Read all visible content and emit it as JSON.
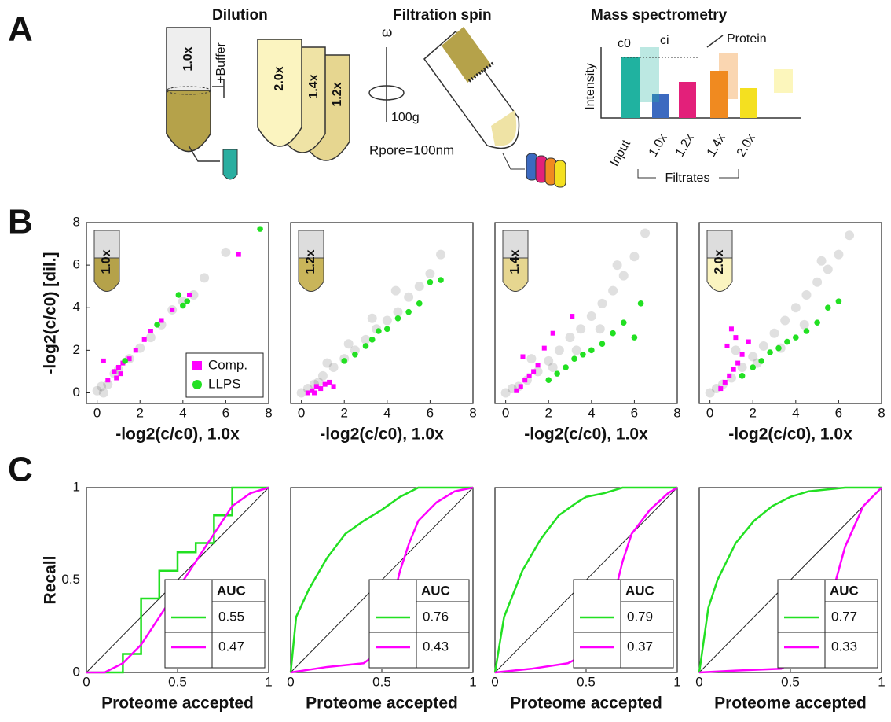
{
  "panel_labels": [
    "A",
    "B",
    "C"
  ],
  "diagram": {
    "dilution": {
      "title": "Dilution",
      "tube": "1.0x",
      "buffer": "+Buffer",
      "tubes": [
        "2.0x",
        "1.4x",
        "1.2x"
      ]
    },
    "filtration": {
      "title": "Filtration spin",
      "omega": "ω",
      "speed": "100g",
      "pore": "Rpore=100nm"
    },
    "mass_spec": {
      "title": "Mass spectrometry",
      "c0": "c0",
      "ci": "ci",
      "protein": "Protein",
      "intensity": "Intensity",
      "input": "Input",
      "samples": [
        "1.0x",
        "1.2x",
        "1.4x",
        "2.0x"
      ],
      "filtrates": "Filtrates"
    }
  },
  "chart_data": [
    {
      "type": "scatter",
      "ylabel": "-log2(c/c0) [dil.]",
      "xlabel": "-log2(c/c0), 1.0x",
      "inset_label": "1.0x",
      "xlim": [
        -0.5,
        8
      ],
      "ylim": [
        -0.5,
        8
      ],
      "xticks": [
        0,
        2,
        4,
        6,
        8
      ],
      "yticks": [
        0,
        2,
        4,
        6,
        8
      ],
      "legend": "lower right",
      "series": [
        {
          "color": "#000000",
          "marker": "circle",
          "x": [
            0,
            0.2,
            0.5,
            1,
            1.5,
            2,
            3,
            4,
            5,
            6,
            0.3,
            0.8,
            2.5,
            4.5,
            3.5
          ],
          "values": [
            0.1,
            0.3,
            0.4,
            1.1,
            1.6,
            2.1,
            3.2,
            4.3,
            5.4,
            6.6,
            0,
            0.9,
            2.6,
            4.6,
            3.9
          ]
        },
        {
          "name": "Comp.",
          "color": "#ff00ff",
          "marker": "square",
          "x": [
            0.5,
            0.8,
            1,
            1.2,
            1.5,
            1.8,
            2.2,
            2.5,
            3,
            3.5,
            4.3,
            6.6,
            0.9,
            1.1,
            0.3
          ],
          "values": [
            0.6,
            1,
            1.2,
            1.4,
            1.6,
            2,
            2.5,
            2.9,
            3.4,
            3.9,
            4.6,
            6.5,
            0.7,
            0.9,
            1.5
          ]
        },
        {
          "name": "LLPS",
          "color": "#22e022",
          "marker": "circle",
          "x": [
            1.3,
            2.8,
            3.8,
            4,
            4.2,
            7.6
          ],
          "values": [
            1.5,
            3.2,
            4.6,
            4.1,
            4.3,
            7.7
          ]
        }
      ]
    },
    {
      "type": "scatter",
      "xlabel": "-log2(c/c0), 1.0x",
      "inset_label": "1.2x",
      "xlim": [
        -0.5,
        8
      ],
      "ylim": [
        -0.5,
        8
      ],
      "xticks": [
        0,
        2,
        4,
        6,
        8
      ],
      "series": [
        {
          "color": "#000000",
          "marker": "circle",
          "x": [
            0,
            0.3,
            0.6,
            1,
            1.5,
            2,
            2.5,
            3,
            3.5,
            4,
            4.5,
            5,
            5.5,
            6,
            6.5,
            1.2,
            2.2,
            3.3,
            4.4,
            0.8
          ],
          "values": [
            0,
            0.2,
            0.4,
            0.8,
            1.2,
            1.6,
            2,
            2.5,
            3,
            3.4,
            3.8,
            4.5,
            5,
            5.6,
            6.5,
            1.4,
            2.3,
            3.5,
            4.8,
            0.5
          ]
        },
        {
          "name": "Comp.",
          "color": "#ff00ff",
          "marker": "square",
          "x": [
            0.3,
            0.5,
            0.7,
            0.9,
            1.1,
            1.3,
            1.5,
            0.6
          ],
          "values": [
            0,
            0.1,
            0.3,
            0.2,
            0.4,
            0.5,
            0.3,
            0
          ]
        },
        {
          "name": "LLPS",
          "color": "#22e022",
          "marker": "circle",
          "x": [
            2,
            2.5,
            3,
            3.3,
            3.6,
            4,
            4.5,
            5,
            5.5,
            6,
            6.5
          ],
          "values": [
            1.5,
            1.8,
            2.2,
            2.5,
            2.9,
            3,
            3.5,
            3.8,
            4.2,
            5.2,
            5.3
          ]
        }
      ]
    },
    {
      "type": "scatter",
      "xlabel": "-log2(c/c0), 1.0x",
      "inset_label": "1.4x",
      "xlim": [
        -0.5,
        8
      ],
      "ylim": [
        -0.5,
        8
      ],
      "xticks": [
        0,
        2,
        4,
        6,
        8
      ],
      "series": [
        {
          "color": "#000000",
          "marker": "circle",
          "x": [
            0,
            0.3,
            0.6,
            1,
            1.5,
            2,
            2.5,
            3,
            3.5,
            4,
            4.5,
            5,
            5.5,
            6,
            6.5,
            1.2,
            2.2,
            3.3,
            4.4,
            5.2
          ],
          "values": [
            0,
            0.2,
            0.3,
            0.6,
            1,
            1.5,
            2,
            2.6,
            3,
            3.6,
            4.2,
            4.8,
            5.5,
            6.4,
            7.5,
            1.6,
            1.2,
            2,
            3,
            6
          ]
        },
        {
          "name": "Comp.",
          "color": "#ff00ff",
          "marker": "square",
          "x": [
            0.5,
            0.7,
            0.9,
            1.1,
            1.3,
            1.5,
            0.8,
            1.8,
            3.1,
            2.2
          ],
          "values": [
            0.1,
            0.3,
            0.6,
            0.8,
            1,
            1.3,
            1.7,
            2.1,
            3.6,
            2.8
          ]
        },
        {
          "name": "LLPS",
          "color": "#22e022",
          "marker": "circle",
          "x": [
            2,
            2.4,
            2.8,
            3.2,
            3.6,
            4,
            4.5,
            5,
            5.5,
            6,
            6.3
          ],
          "values": [
            0.6,
            0.9,
            1.2,
            1.6,
            1.8,
            2,
            2.3,
            2.8,
            3.3,
            2.6,
            4.2
          ]
        }
      ]
    },
    {
      "type": "scatter",
      "xlabel": "-log2(c/c0), 1.0x",
      "inset_label": "2.0x",
      "xlim": [
        -0.5,
        8
      ],
      "ylim": [
        -0.5,
        8
      ],
      "xticks": [
        0,
        2,
        4,
        6,
        8
      ],
      "series": [
        {
          "color": "#000000",
          "marker": "circle",
          "x": [
            0,
            0.3,
            0.6,
            1,
            1.5,
            2,
            2.5,
            3,
            3.5,
            4,
            4.5,
            5,
            5.5,
            6,
            6.5,
            1.2,
            2.2,
            3.3,
            4.4,
            5.2
          ],
          "values": [
            0,
            0.2,
            0.4,
            0.7,
            1.2,
            1.7,
            2.2,
            2.8,
            3.4,
            4,
            4.6,
            5.2,
            5.8,
            6.5,
            7.4,
            2,
            1.4,
            2.1,
            3.2,
            6.2
          ]
        },
        {
          "name": "Comp.",
          "color": "#ff00ff",
          "marker": "square",
          "x": [
            0.5,
            0.7,
            0.9,
            1.1,
            1.3,
            1.5,
            0.8,
            1.8,
            1,
            1.2
          ],
          "values": [
            0.2,
            0.5,
            0.8,
            1.1,
            1.4,
            1.8,
            2.2,
            2.4,
            3,
            2.6
          ]
        },
        {
          "name": "LLPS",
          "color": "#22e022",
          "marker": "circle",
          "x": [
            1.5,
            2,
            2.4,
            2.8,
            3.2,
            3.6,
            4,
            4.5,
            5,
            5.5,
            6
          ],
          "values": [
            0.8,
            1.2,
            1.5,
            1.9,
            2.1,
            2.4,
            2.6,
            2.9,
            3.3,
            4,
            4.3
          ]
        }
      ]
    },
    {
      "type": "line",
      "ylabel": "Recall",
      "xlabel": "Proteome accepted",
      "xlim": [
        0,
        1
      ],
      "ylim": [
        0,
        1
      ],
      "xticks": [
        0,
        0.5,
        1
      ],
      "yticks": [
        0,
        0.5,
        1
      ],
      "legend": "lower right",
      "legend_title": "AUC",
      "series": [
        {
          "color": "#22e022",
          "auc": "0.55",
          "x": [
            0,
            0.2,
            0.2,
            0.3,
            0.3,
            0.4,
            0.4,
            0.5,
            0.5,
            0.6,
            0.6,
            0.7,
            0.7,
            0.8,
            0.8,
            1
          ],
          "values": [
            0,
            0,
            0.1,
            0.1,
            0.4,
            0.4,
            0.55,
            0.55,
            0.65,
            0.65,
            0.7,
            0.7,
            0.85,
            0.85,
            1,
            1
          ]
        },
        {
          "color": "#ff00ff",
          "auc": "0.47",
          "x": [
            0,
            0.1,
            0.2,
            0.3,
            0.4,
            0.5,
            0.6,
            0.7,
            0.8,
            0.9,
            1
          ],
          "values": [
            0,
            0,
            0.05,
            0.15,
            0.3,
            0.45,
            0.6,
            0.75,
            0.9,
            0.97,
            1
          ]
        }
      ]
    },
    {
      "type": "line",
      "xlabel": "Proteome accepted",
      "xlim": [
        0,
        1
      ],
      "ylim": [
        0,
        1
      ],
      "xticks": [
        0,
        0.5,
        1
      ],
      "legend": "lower right",
      "legend_title": "AUC",
      "series": [
        {
          "color": "#22e022",
          "auc": "0.76",
          "x": [
            0,
            0.03,
            0.1,
            0.2,
            0.3,
            0.4,
            0.5,
            0.6,
            0.7,
            0.8,
            1
          ],
          "values": [
            0,
            0.3,
            0.45,
            0.62,
            0.75,
            0.82,
            0.88,
            0.95,
            1,
            1,
            1
          ]
        },
        {
          "color": "#ff00ff",
          "auc": "0.43",
          "x": [
            0,
            0.2,
            0.4,
            0.5,
            0.55,
            0.6,
            0.65,
            0.7,
            0.8,
            0.9,
            1
          ],
          "values": [
            0,
            0.03,
            0.05,
            0.12,
            0.35,
            0.55,
            0.7,
            0.82,
            0.92,
            0.98,
            1
          ]
        }
      ]
    },
    {
      "type": "line",
      "xlabel": "Proteome accepted",
      "xlim": [
        0,
        1
      ],
      "ylim": [
        0,
        1
      ],
      "xticks": [
        0,
        0.5,
        1
      ],
      "legend": "lower right",
      "legend_title": "AUC",
      "series": [
        {
          "color": "#22e022",
          "auc": "0.79",
          "x": [
            0,
            0.05,
            0.15,
            0.25,
            0.35,
            0.45,
            0.5,
            0.6,
            0.7,
            1
          ],
          "values": [
            0,
            0.3,
            0.55,
            0.72,
            0.85,
            0.92,
            0.95,
            0.97,
            1,
            1
          ]
        },
        {
          "color": "#ff00ff",
          "auc": "0.37",
          "x": [
            0,
            0.2,
            0.4,
            0.5,
            0.6,
            0.65,
            0.7,
            0.75,
            0.85,
            0.95,
            1
          ],
          "values": [
            0,
            0.02,
            0.05,
            0.1,
            0.25,
            0.4,
            0.6,
            0.75,
            0.88,
            0.97,
            1
          ]
        }
      ]
    },
    {
      "type": "line",
      "xlabel": "Proteome accepted",
      "xlim": [
        0,
        1
      ],
      "ylim": [
        0,
        1
      ],
      "xticks": [
        0,
        0.5,
        1
      ],
      "legend": "lower right",
      "legend_title": "AUC",
      "series": [
        {
          "color": "#22e022",
          "auc": "0.77",
          "x": [
            0,
            0.05,
            0.1,
            0.2,
            0.3,
            0.4,
            0.5,
            0.6,
            0.8,
            1
          ],
          "values": [
            0,
            0.35,
            0.5,
            0.7,
            0.82,
            0.9,
            0.95,
            0.98,
            1,
            1
          ]
        },
        {
          "color": "#ff00ff",
          "auc": "0.33",
          "x": [
            0,
            0.2,
            0.45,
            0.5,
            0.6,
            0.7,
            0.75,
            0.8,
            0.9,
            1
          ],
          "values": [
            0,
            0.01,
            0.02,
            0.05,
            0.12,
            0.3,
            0.5,
            0.68,
            0.9,
            1
          ]
        }
      ]
    }
  ]
}
